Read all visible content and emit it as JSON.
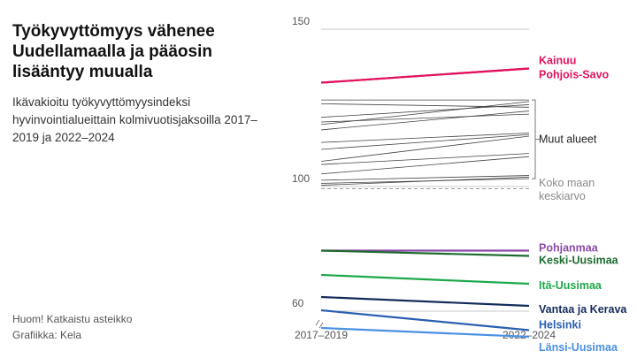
{
  "title": "Työkyvyttömyys vähenee Uudellamaalla ja pääosin lisääntyy muualla",
  "subtitle": "Ikävakioitu työkyvyttömyysindeksi hyvinvointialueittain kolmivuotisjaksoilla 2017–2019 ja 2022–2024",
  "footnote": {
    "note": "Huom! Katkaistu asteikko",
    "source": "Grafiikka: Kela"
  },
  "chart_data": {
    "type": "line",
    "x": [
      "2017–2019",
      "2022–2024"
    ],
    "ylim": [
      60,
      150
    ],
    "yticks": [
      60,
      100,
      150
    ],
    "axis_break": true,
    "reference_line": {
      "name": "Koko maan keskiarvo",
      "value": 99.5,
      "color": "#999999"
    },
    "muted_group_label": "Muut alueet",
    "muted_color": "#444444",
    "muted_series": [
      [
        127.5,
        127.5
      ],
      [
        126.3,
        125.2
      ],
      [
        122.0,
        126.0
      ],
      [
        120.5,
        123.0
      ],
      [
        119.7,
        127.0
      ],
      [
        118.0,
        124.0
      ],
      [
        114.0,
        117.0
      ],
      [
        111.8,
        116.5
      ],
      [
        108.0,
        116.0
      ],
      [
        107.0,
        110.5
      ],
      [
        104.0,
        109.5
      ],
      [
        102.0,
        103.5
      ],
      [
        101.0,
        102.5
      ],
      [
        100.4,
        103.0
      ]
    ],
    "series": [
      {
        "name": "Kainuu",
        "values": [
          133,
          137.5
        ],
        "color": "#e3125e"
      },
      {
        "name": "Pohjois-Savo",
        "values": [
          133,
          137.5
        ],
        "color": "#e3125e"
      },
      {
        "name": "Pohjanmaa",
        "values": [
          85.5,
          85.5
        ],
        "color": "#8b4aa8"
      },
      {
        "name": "Keski-Uusimaa",
        "values": [
          85.5,
          84.3
        ],
        "color": "#1c6b2e"
      },
      {
        "name": "Itä-Uusimaa",
        "values": [
          80.0,
          78.0
        ],
        "color": "#1ca84a"
      },
      {
        "name": "Vantaa ja Kerava",
        "values": [
          75.0,
          73.0
        ],
        "color": "#142c5c"
      },
      {
        "name": "Helsinki",
        "values": [
          72.0,
          67.5
        ],
        "color": "#2a5fb0"
      },
      {
        "name": "Länsi-Uusimaa",
        "values": [
          68.0,
          66.0
        ],
        "color": "#4a90e2"
      }
    ]
  }
}
